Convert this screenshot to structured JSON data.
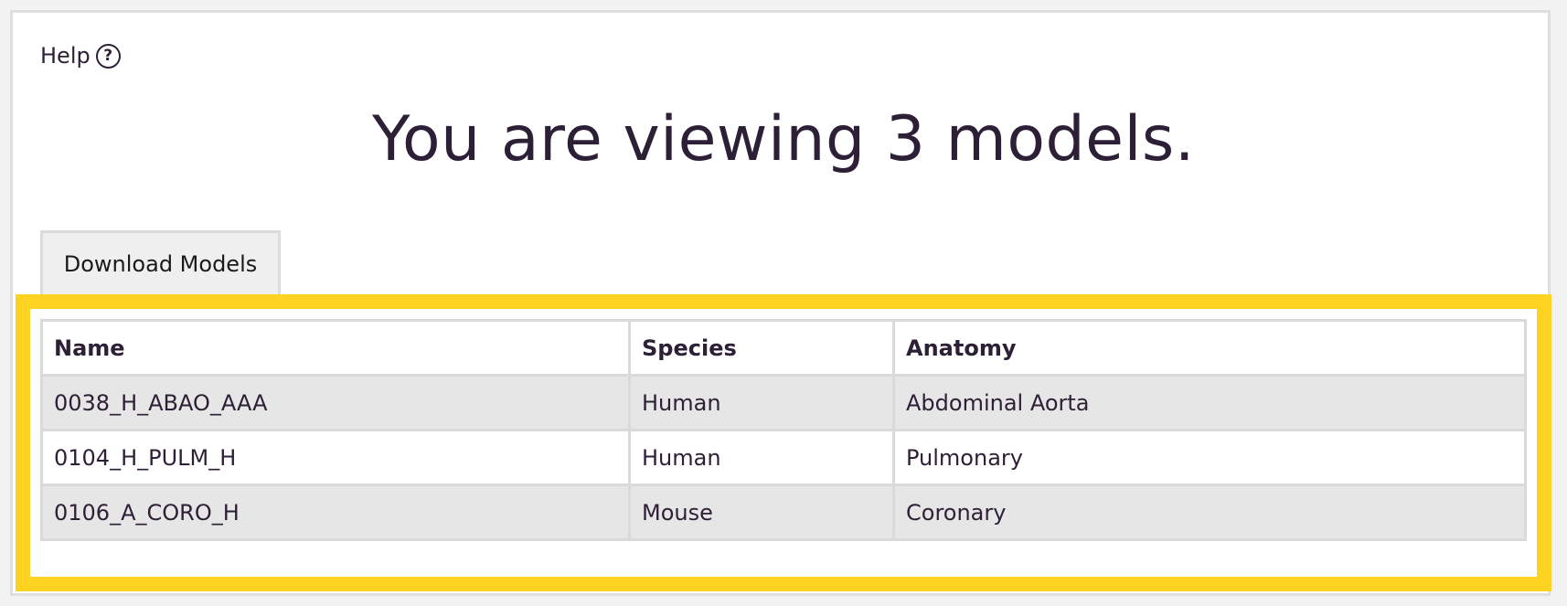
{
  "help": {
    "label": "Help",
    "icon": "question-circle-icon",
    "icon_glyph": "?"
  },
  "title": "You are viewing 3 models.",
  "download_button": {
    "label": "Download Models"
  },
  "highlight_color": "#fdd221",
  "table": {
    "headers": [
      "Name",
      "Species",
      "Anatomy"
    ],
    "rows": [
      {
        "name": "0038_H_ABAO_AAA",
        "species": "Human",
        "anatomy": "Abdominal Aorta"
      },
      {
        "name": "0104_H_PULM_H",
        "species": "Human",
        "anatomy": "Pulmonary"
      },
      {
        "name": "0106_A_CORO_H",
        "species": "Mouse",
        "anatomy": "Coronary"
      }
    ]
  }
}
